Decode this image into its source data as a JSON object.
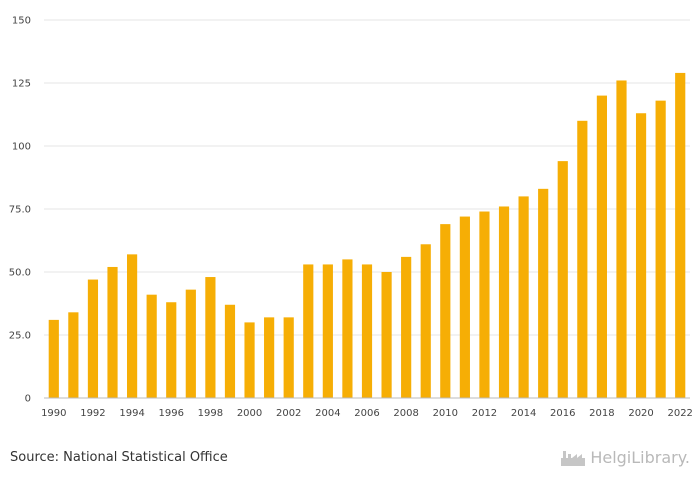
{
  "chart_data": {
    "type": "bar",
    "categories": [
      "1990",
      "1991",
      "1992",
      "1993",
      "1994",
      "1995",
      "1996",
      "1997",
      "1998",
      "1999",
      "2000",
      "2001",
      "2002",
      "2003",
      "2004",
      "2005",
      "2006",
      "2007",
      "2008",
      "2009",
      "2010",
      "2011",
      "2012",
      "2013",
      "2014",
      "2015",
      "2016",
      "2017",
      "2018",
      "2019",
      "2020",
      "2021",
      "2022"
    ],
    "values": [
      31,
      34,
      47,
      52,
      57,
      41,
      38,
      43,
      48,
      37,
      30,
      32,
      32,
      53,
      53,
      55,
      53,
      50,
      56,
      61,
      69,
      72,
      74,
      76,
      80,
      83,
      94,
      110,
      120,
      126,
      113,
      118,
      129
    ],
    "x_tick_labels": [
      "1990",
      "1992",
      "1994",
      "1996",
      "1998",
      "2000",
      "2002",
      "2004",
      "2006",
      "2008",
      "2010",
      "2012",
      "2014",
      "2016",
      "2018",
      "2020",
      "2022"
    ],
    "y_tick_labels": [
      "0",
      "25.0",
      "50.0",
      "75.0",
      "100",
      "125",
      "150"
    ],
    "y_ticks": [
      0,
      25,
      50,
      75,
      100,
      125,
      150
    ],
    "ylim": [
      0,
      150
    ],
    "title": "",
    "xlabel": "",
    "ylabel": "",
    "grid": true,
    "bar_color": "#f6ae05"
  },
  "footer": {
    "source": "Source: National Statistical Office",
    "brand": "HelgiLibrary."
  },
  "brand_logo_icon": "factory-icon"
}
